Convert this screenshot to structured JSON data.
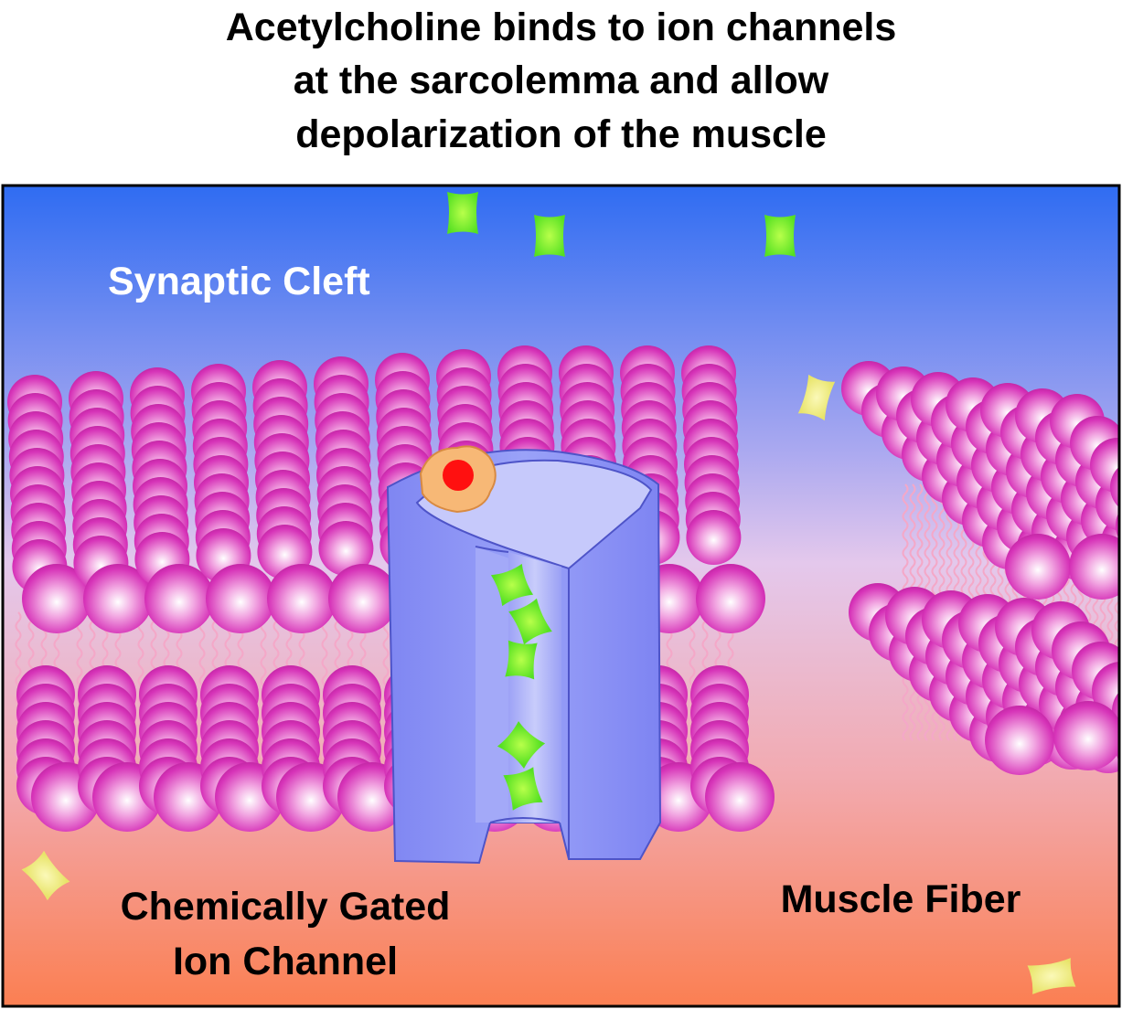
{
  "title": {
    "line1": "Acetylcholine binds to ion channels",
    "line2": "at the sarcolemma and allow",
    "line3": "depolarization of the muscle"
  },
  "labels": {
    "synaptic_cleft": "Synaptic Cleft",
    "channel_line1": "Chemically Gated",
    "channel_line2": "Ion Channel",
    "muscle_fiber": "Muscle Fiber"
  },
  "colors": {
    "cleft_top": "#2f6cf2",
    "cleft_mid": "#e4c8ec",
    "muscle_bottom": "#fb7f52",
    "phospholipid_head": "#d633b8",
    "phospholipid_tail": "#f4a8c8",
    "ion_channel": "#8088f4",
    "acetylcholine_receptor": "#f7b876",
    "acetylcholine": "#ff0000",
    "ion": "#55e022",
    "other_ion": "#f2f07a"
  },
  "icons": [
    "phospholipid-head",
    "lipid-tail",
    "ion-particle",
    "acetylcholine-molecule",
    "ion-channel-protein"
  ]
}
